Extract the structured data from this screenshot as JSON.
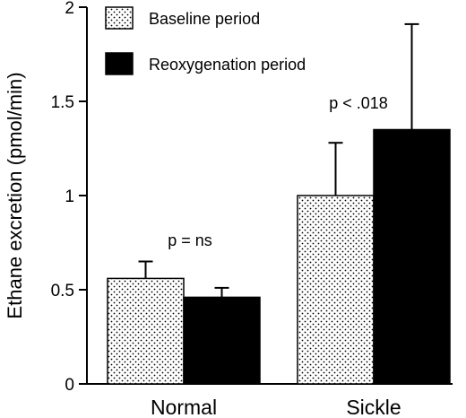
{
  "chart_data": {
    "type": "bar",
    "title": "",
    "xlabel": "",
    "ylabel": "Ethane excretion (pmol/min)",
    "ylim": [
      0,
      2
    ],
    "yticks": [
      "0",
      "0.5",
      "1",
      "1.5",
      "2"
    ],
    "categories": [
      "Normal",
      "Sickle"
    ],
    "series": [
      {
        "name": "Baseline period",
        "values": [
          0.56,
          1.0
        ],
        "errors": [
          0.09,
          0.28
        ],
        "pattern": "stipple",
        "color": "#000000"
      },
      {
        "name": "Reoxygenation period",
        "values": [
          0.46,
          1.35
        ],
        "errors": [
          0.05,
          0.56
        ],
        "pattern": "solid",
        "color": "#000000"
      }
    ],
    "annotations": [
      {
        "text": "p = ns",
        "category": "Normal"
      },
      {
        "text": "p < .018",
        "category": "Sickle"
      }
    ],
    "legend_position": "top-left",
    "grid": false
  }
}
